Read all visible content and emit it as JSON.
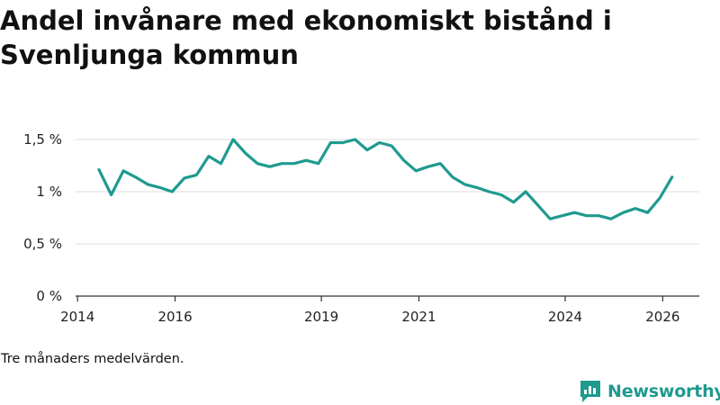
{
  "title": "Andel invånare med ekonomiskt bistånd i Svenljunga kommun",
  "note": "Tre månaders medelvärden.",
  "brand": {
    "name": "Newsworthy",
    "color": "#1f9a8f"
  },
  "colors": {
    "line": "#1f9a8f",
    "grid": "#dddddd",
    "axis": "#333333"
  },
  "chart_data": {
    "type": "line",
    "title": "Andel invånare med ekonomiskt bistånd i Svenljunga kommun",
    "xlabel": "",
    "ylabel": "",
    "xlim": [
      2013.96,
      2026.75
    ],
    "ylim": [
      0,
      1.5
    ],
    "yticks": [
      {
        "value": 0,
        "label": "0 %"
      },
      {
        "value": 0.5,
        "label": "0,5 %"
      },
      {
        "value": 1.0,
        "label": "1 %"
      },
      {
        "value": 1.5,
        "label": "1,5 %"
      }
    ],
    "xticks": [
      {
        "value": 2014.0,
        "label": "2014"
      },
      {
        "value": 2016.0,
        "label": "2016"
      },
      {
        "value": 2019.0,
        "label": "2019"
      },
      {
        "value": 2021.0,
        "label": "2021"
      },
      {
        "value": 2024.0,
        "label": "2024"
      },
      {
        "value": 2026.0,
        "label": "2026"
      }
    ],
    "series": [
      {
        "name": "Andel invånare med ekonomiskt bistånd",
        "x": [
          2014.44,
          2014.69,
          2014.94,
          2015.19,
          2015.44,
          2015.69,
          2015.94,
          2016.19,
          2016.44,
          2016.69,
          2016.94,
          2017.19,
          2017.44,
          2017.69,
          2017.94,
          2018.19,
          2018.44,
          2018.69,
          2018.94,
          2019.19,
          2019.44,
          2019.69,
          2019.94,
          2020.19,
          2020.44,
          2020.69,
          2020.94,
          2021.19,
          2021.44,
          2021.69,
          2021.94,
          2022.19,
          2022.44,
          2022.69,
          2022.94,
          2023.19,
          2023.44,
          2023.69,
          2023.94,
          2024.19,
          2024.44,
          2024.69,
          2024.94,
          2025.19,
          2025.44,
          2025.69,
          2025.94,
          2026.19
        ],
        "values": [
          1.21,
          0.97,
          1.2,
          1.14,
          1.07,
          1.04,
          1.0,
          1.13,
          1.16,
          1.34,
          1.27,
          1.5,
          1.37,
          1.27,
          1.24,
          1.27,
          1.27,
          1.3,
          1.27,
          1.47,
          1.47,
          1.5,
          1.4,
          1.47,
          1.44,
          1.3,
          1.2,
          1.24,
          1.27,
          1.14,
          1.07,
          1.04,
          1.0,
          0.97,
          0.9,
          1.0,
          0.87,
          0.74,
          0.77,
          0.8,
          0.77,
          0.77,
          0.74,
          0.8,
          0.84,
          0.8,
          0.94,
          1.14
        ]
      }
    ]
  }
}
